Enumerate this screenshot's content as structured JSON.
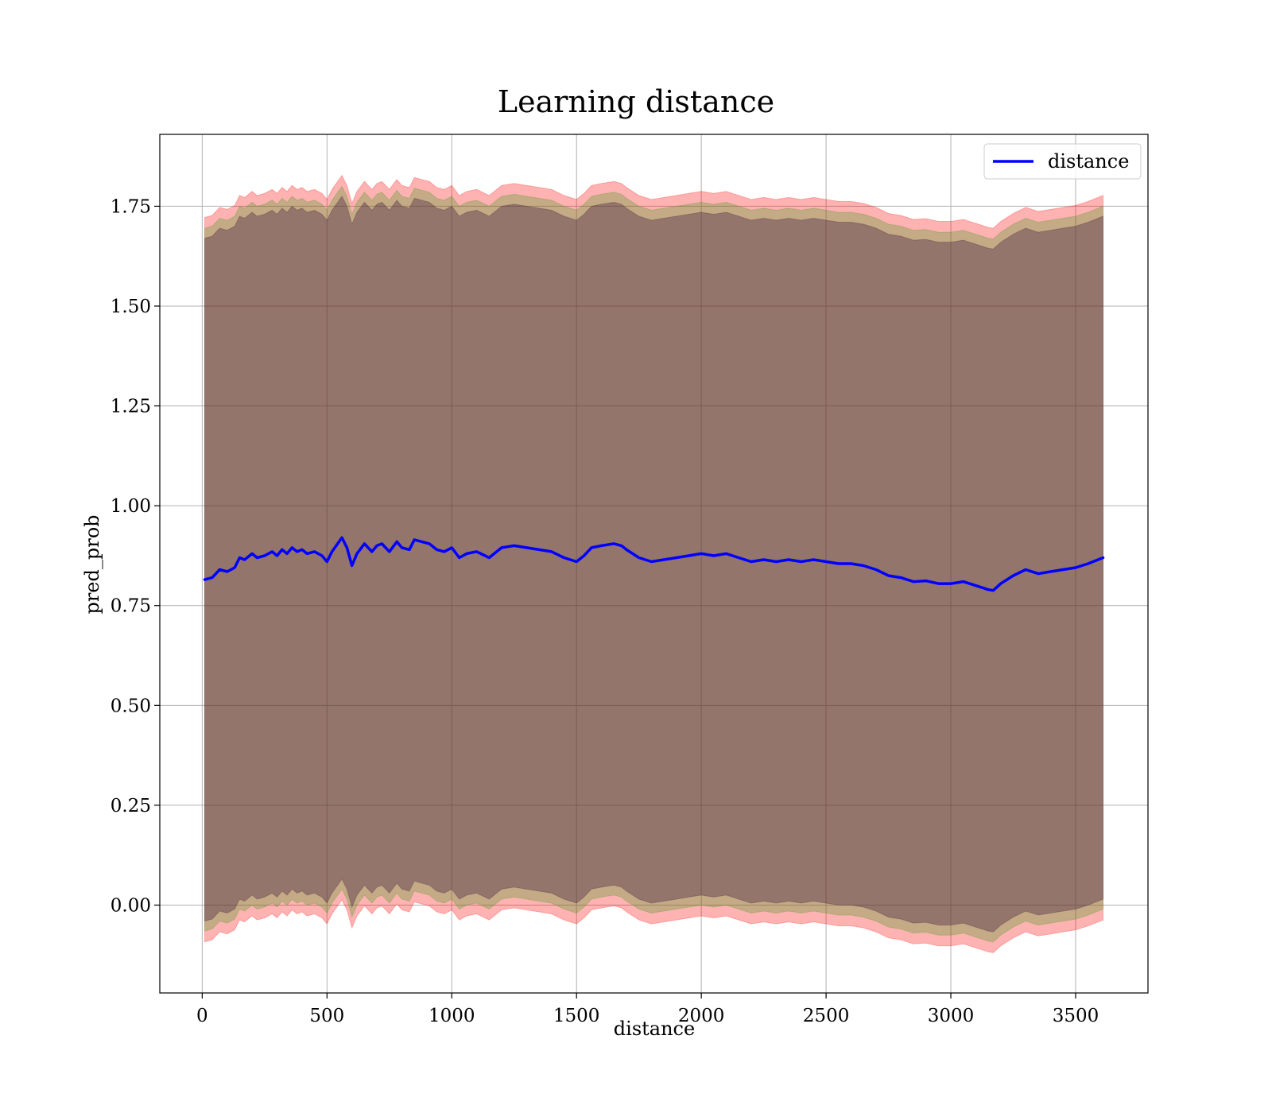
{
  "chart_data": {
    "type": "line",
    "title": "Learning distance",
    "xlabel": "distance",
    "ylabel": "pred_prob",
    "xlim": [
      -170,
      3790
    ],
    "ylim": [
      -0.22,
      1.93
    ],
    "xticks": [
      0,
      500,
      1000,
      1500,
      2000,
      2500,
      3000,
      3500
    ],
    "xtick_labels": [
      "0",
      "500",
      "1000",
      "1500",
      "2000",
      "2500",
      "3000",
      "3500"
    ],
    "yticks": [
      0.0,
      0.25,
      0.5,
      0.75,
      1.0,
      1.25,
      1.5,
      1.75
    ],
    "ytick_labels": [
      "0.00",
      "0.25",
      "0.50",
      "0.75",
      "1.00",
      "1.25",
      "1.50",
      "1.75"
    ],
    "grid": true,
    "legend": {
      "position": "top-right",
      "entries": [
        {
          "label": "distance",
          "color": "#0000ff"
        }
      ]
    },
    "series": [
      {
        "name": "distance",
        "color": "#0000ff",
        "x": [
          10,
          40,
          70,
          100,
          130,
          150,
          170,
          200,
          220,
          250,
          280,
          300,
          320,
          340,
          360,
          380,
          400,
          420,
          450,
          480,
          500,
          520,
          560,
          580,
          600,
          620,
          650,
          680,
          700,
          720,
          750,
          780,
          800,
          830,
          850,
          880,
          910,
          940,
          970,
          1000,
          1030,
          1060,
          1100,
          1150,
          1200,
          1250,
          1300,
          1350,
          1400,
          1450,
          1500,
          1530,
          1560,
          1600,
          1650,
          1680,
          1700,
          1750,
          1800,
          1850,
          1900,
          1950,
          2000,
          2050,
          2100,
          2150,
          2200,
          2250,
          2300,
          2350,
          2400,
          2450,
          2500,
          2550,
          2600,
          2650,
          2700,
          2750,
          2800,
          2850,
          2900,
          2950,
          3000,
          3050,
          3100,
          3150,
          3170,
          3200,
          3250,
          3300,
          3350,
          3400,
          3450,
          3500,
          3550,
          3610
        ],
        "values": [
          0.815,
          0.82,
          0.84,
          0.835,
          0.845,
          0.87,
          0.865,
          0.88,
          0.87,
          0.875,
          0.885,
          0.875,
          0.89,
          0.88,
          0.895,
          0.885,
          0.89,
          0.88,
          0.885,
          0.875,
          0.86,
          0.885,
          0.92,
          0.895,
          0.85,
          0.88,
          0.905,
          0.885,
          0.9,
          0.905,
          0.885,
          0.91,
          0.895,
          0.89,
          0.915,
          0.91,
          0.905,
          0.89,
          0.885,
          0.895,
          0.87,
          0.88,
          0.885,
          0.87,
          0.895,
          0.9,
          0.895,
          0.89,
          0.885,
          0.87,
          0.86,
          0.875,
          0.895,
          0.9,
          0.905,
          0.9,
          0.89,
          0.87,
          0.86,
          0.865,
          0.87,
          0.875,
          0.88,
          0.875,
          0.88,
          0.87,
          0.86,
          0.865,
          0.86,
          0.865,
          0.86,
          0.865,
          0.86,
          0.855,
          0.855,
          0.85,
          0.84,
          0.825,
          0.82,
          0.81,
          0.812,
          0.805,
          0.805,
          0.81,
          0.8,
          0.79,
          0.788,
          0.805,
          0.825,
          0.84,
          0.83,
          0.835,
          0.84,
          0.845,
          0.855,
          0.87
        ]
      }
    ],
    "bands": [
      {
        "color": "#ff0000",
        "opacity": 0.3,
        "upper_offset": 0.907,
        "lower_offset": -0.907
      },
      {
        "color": "#3a9a1e",
        "opacity": 0.3,
        "upper_offset": 0.88,
        "lower_offset": -0.88
      },
      {
        "color": "#3c103c",
        "opacity": 0.35,
        "upper_offset": 0.855,
        "lower_offset": -0.855
      }
    ]
  }
}
